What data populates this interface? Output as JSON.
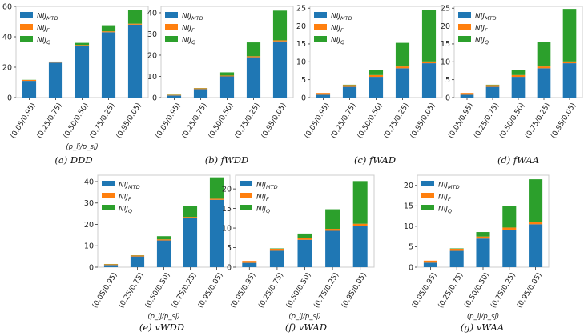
{
  "colors": {
    "mtd": "#1f77b4",
    "f": "#ff7f0e",
    "q": "#2ca02c",
    "axis": "#333333",
    "frame": "#cccccc"
  },
  "legend": [
    {
      "base": "NIJ",
      "sub": "MTD",
      "series": "mtd"
    },
    {
      "base": "NIJ",
      "sub": "F",
      "series": "f"
    },
    {
      "base": "NIJ",
      "sub": "Q",
      "series": "q"
    }
  ],
  "xlabel": "(p_lj/p_sj)",
  "chart_data": [
    {
      "type": "bar",
      "stacked": true,
      "caption": "(a)  DDD",
      "categories": [
        "(0.05/0.95)",
        "(0.25/0.75)",
        "(0.50/0.50)",
        "(0.75/0.25)",
        "(0.95/0.05)"
      ],
      "ylim": [
        0,
        60
      ],
      "yticks": [
        0,
        20,
        40,
        60
      ],
      "show_xlabel": true,
      "legend_position": "top-left",
      "series": [
        {
          "name": "NIJ_MTD",
          "values": [
            11.0,
            23.0,
            34.0,
            43.0,
            48.0
          ]
        },
        {
          "name": "NIJ_F",
          "values": [
            0.6,
            0.6,
            0.6,
            0.6,
            0.6
          ]
        },
        {
          "name": "NIJ_Q",
          "values": [
            0.1,
            0.1,
            1.4,
            4.0,
            9.0
          ]
        }
      ]
    },
    {
      "type": "bar",
      "stacked": true,
      "caption": "(b)  fWDD",
      "categories": [
        "(0.05/0.95)",
        "(0.25/0.75)",
        "(0.50/0.50)",
        "(0.75/0.25)",
        "(0.95/0.05)"
      ],
      "ylim": [
        0,
        43
      ],
      "yticks": [
        0,
        10,
        20,
        30,
        40
      ],
      "show_xlabel": false,
      "legend_position": "top-left",
      "series": [
        {
          "name": "NIJ_MTD",
          "values": [
            1.0,
            4.0,
            10.0,
            19.0,
            26.5
          ]
        },
        {
          "name": "NIJ_F",
          "values": [
            0.3,
            0.4,
            0.4,
            0.5,
            0.5
          ]
        },
        {
          "name": "NIJ_Q",
          "values": [
            0.1,
            0.1,
            1.5,
            6.5,
            14.0
          ]
        }
      ]
    },
    {
      "type": "bar",
      "stacked": true,
      "caption": "(c)  fWAD",
      "categories": [
        "(0.05/0.95)",
        "(0.25/0.75)",
        "(0.50/0.50)",
        "(0.75/0.25)",
        "(0.95/0.05)"
      ],
      "ylim": [
        0,
        25.5
      ],
      "yticks": [
        0,
        5,
        10,
        15,
        20,
        25
      ],
      "show_xlabel": false,
      "legend_position": "top-left",
      "series": [
        {
          "name": "NIJ_MTD",
          "values": [
            0.8,
            3.0,
            5.8,
            8.2,
            9.6
          ]
        },
        {
          "name": "NIJ_F",
          "values": [
            0.5,
            0.5,
            0.5,
            0.5,
            0.5
          ]
        },
        {
          "name": "NIJ_Q",
          "values": [
            0.0,
            0.1,
            1.5,
            6.6,
            14.5
          ]
        }
      ]
    },
    {
      "type": "bar",
      "stacked": true,
      "caption": "(d)  fWAA",
      "categories": [
        "(0.05/0.95)",
        "(0.25/0.75)",
        "(0.50/0.50)",
        "(0.75/0.25)",
        "(0.95/0.05)"
      ],
      "ylim": [
        0,
        25.5
      ],
      "yticks": [
        0,
        5,
        10,
        15,
        20,
        25
      ],
      "show_xlabel": false,
      "legend_position": "top-left",
      "series": [
        {
          "name": "NIJ_MTD",
          "values": [
            0.8,
            3.0,
            5.8,
            8.2,
            9.6
          ]
        },
        {
          "name": "NIJ_F",
          "values": [
            0.5,
            0.5,
            0.5,
            0.5,
            0.5
          ]
        },
        {
          "name": "NIJ_Q",
          "values": [
            0.0,
            0.1,
            1.5,
            6.8,
            14.7
          ]
        }
      ]
    },
    {
      "type": "bar",
      "stacked": true,
      "caption": "(e)  vWDD",
      "categories": [
        "(0.05/0.95)",
        "(0.25/0.75)",
        "(0.50/0.50)",
        "(0.75/0.25)",
        "(0.95/0.05)"
      ],
      "ylim": [
        0,
        43
      ],
      "yticks": [
        0,
        10,
        20,
        30,
        40
      ],
      "show_xlabel": true,
      "legend_position": "top-left",
      "series": [
        {
          "name": "NIJ_MTD",
          "values": [
            1.0,
            5.0,
            12.5,
            23.0,
            31.5
          ]
        },
        {
          "name": "NIJ_F",
          "values": [
            0.4,
            0.5,
            0.5,
            0.5,
            0.5
          ]
        },
        {
          "name": "NIJ_Q",
          "values": [
            0.1,
            0.1,
            1.5,
            5.0,
            10.0
          ]
        }
      ]
    },
    {
      "type": "bar",
      "stacked": true,
      "caption": "(f)  vWAD",
      "categories": [
        "(0.05/0.95)",
        "(0.25/0.75)",
        "(0.50/0.50)",
        "(0.75/0.25)",
        "(0.95/0.05)"
      ],
      "ylim": [
        0,
        23.5
      ],
      "yticks": [
        0,
        5,
        10,
        15,
        20
      ],
      "show_xlabel": true,
      "legend_position": "top-left",
      "series": [
        {
          "name": "NIJ_MTD",
          "values": [
            1.1,
            4.2,
            7.0,
            9.3,
            10.6
          ]
        },
        {
          "name": "NIJ_F",
          "values": [
            0.5,
            0.5,
            0.5,
            0.5,
            0.5
          ]
        },
        {
          "name": "NIJ_Q",
          "values": [
            0.0,
            0.1,
            1.1,
            5.0,
            10.9
          ]
        }
      ]
    },
    {
      "type": "bar",
      "stacked": true,
      "caption": "(g)  vWAA",
      "categories": [
        "(0.05/0.95)",
        "(0.25/0.75)",
        "(0.50/0.50)",
        "(0.75/0.25)",
        "(0.95/0.05)"
      ],
      "ylim": [
        0,
        22.5
      ],
      "yticks": [
        0,
        5,
        10,
        15,
        20
      ],
      "show_xlabel": true,
      "legend_position": "top-left",
      "series": [
        {
          "name": "NIJ_MTD",
          "values": [
            1.1,
            4.0,
            7.0,
            9.2,
            10.5
          ]
        },
        {
          "name": "NIJ_F",
          "values": [
            0.5,
            0.5,
            0.5,
            0.5,
            0.5
          ]
        },
        {
          "name": "NIJ_Q",
          "values": [
            0.0,
            0.1,
            1.1,
            5.2,
            10.5
          ]
        }
      ]
    }
  ]
}
